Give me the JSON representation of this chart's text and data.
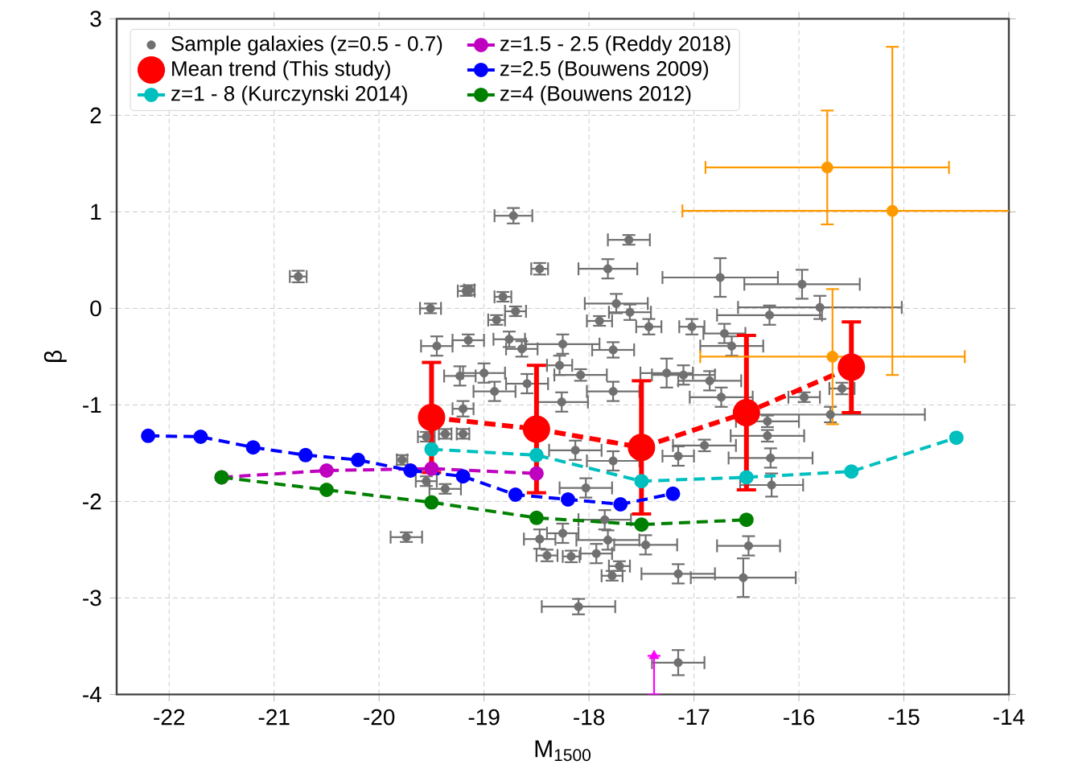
{
  "chart_data": {
    "type": "scatter",
    "xlabel": "M$_{1500}$",
    "ylabel": "β",
    "xlim": [
      -22.5,
      -14
    ],
    "ylim": [
      -4,
      3
    ],
    "xticks": [
      -22,
      -21,
      -20,
      -19,
      -18,
      -17,
      -16,
      -15,
      -14
    ],
    "yticks": [
      -4,
      -3,
      -2,
      -1,
      0,
      1,
      2,
      3
    ],
    "grid": true,
    "legend": "top",
    "marker": "circle",
    "series": [
      {
        "name": "Sample galaxies (z=0.5 - 0.7)",
        "color": "#707070",
        "x": [
          -20.77,
          -19.51,
          -19.45,
          -19.17,
          -19.23,
          -19.74,
          -18.72,
          -17.62,
          -18.47,
          -17.82,
          -16.75,
          -19.14,
          -18.82,
          -18.7,
          -18.88,
          -17.74,
          -17.61,
          -17.9,
          -17.43,
          -17.02,
          -16.71,
          -16.28,
          -19.15,
          -18.76,
          -18.25,
          -17.77,
          -18.64,
          -18.28,
          -17.26,
          -16.64,
          -15.97,
          -15.8,
          -15.59,
          -15.95,
          -15.7,
          -16.3,
          -16.3,
          -16.27,
          -16.26,
          -18.47,
          -18.25,
          -18.4,
          -18.17,
          -17.93,
          -17.82,
          -17.71,
          -17.78,
          -17.46,
          -17.15,
          -16.48,
          -16.53,
          -18.1,
          -17.15,
          -19.55,
          -19.37,
          -19.2,
          -19.55,
          -19.37,
          -19.78,
          -19.2,
          -18.9,
          -18.59,
          -18.08,
          -17.77,
          -17.1,
          -16.74,
          -16.85,
          -18.26,
          -19.0,
          -18.13,
          -17.77,
          -17.15,
          -16.9,
          -18.03,
          -17.85
        ],
        "values": [
          0.33,
          0.0,
          -0.39,
          0.18,
          -0.7,
          -2.37,
          0.96,
          0.71,
          0.41,
          0.41,
          0.32,
          0.19,
          0.12,
          -0.03,
          -0.12,
          0.05,
          -0.04,
          -0.13,
          -0.19,
          -0.19,
          -0.26,
          -0.07,
          -0.33,
          -0.32,
          -0.37,
          -0.43,
          -0.42,
          -0.59,
          -0.67,
          -0.39,
          0.25,
          0.01,
          -0.83,
          -0.92,
          -1.1,
          -1.17,
          -1.32,
          -1.55,
          -1.83,
          -2.39,
          -2.33,
          -2.56,
          -2.57,
          -2.54,
          -2.4,
          -2.67,
          -2.77,
          -2.45,
          -2.75,
          -2.46,
          -2.79,
          -3.09,
          -3.67,
          -1.33,
          -1.3,
          -1.3,
          -1.79,
          -1.87,
          -1.57,
          -1.04,
          -0.86,
          -0.78,
          -0.69,
          -0.86,
          -0.69,
          -0.92,
          -0.75,
          -0.97,
          -0.67,
          -1.47,
          -1.58,
          -1.53,
          -1.42,
          -1.86,
          -2.19
        ],
        "xerrors": [
          0.08,
          0.1,
          0.15,
          0.08,
          0.15,
          0.15,
          0.18,
          0.2,
          0.08,
          0.28,
          0.55,
          0.05,
          0.08,
          0.1,
          0.08,
          0.3,
          0.2,
          0.12,
          0.12,
          0.12,
          0.2,
          0.5,
          0.15,
          0.15,
          0.35,
          0.2,
          0.15,
          0.12,
          0.25,
          0.3,
          0.55,
          0.78,
          0.12,
          0.15,
          0.9,
          0.3,
          0.35,
          0.4,
          0.3,
          0.15,
          0.15,
          0.1,
          0.08,
          0.15,
          0.3,
          0.1,
          0.1,
          0.3,
          0.35,
          0.3,
          0.5,
          0.35,
          0.25,
          0.08,
          0.06,
          0.06,
          0.1,
          0.15,
          0.05,
          0.1,
          0.2,
          0.2,
          0.25,
          0.25,
          0.3,
          0.3,
          0.3,
          0.25,
          0.2,
          0.25,
          0.25,
          0.15,
          0.3,
          0.25,
          0.25
        ],
        "errors": [
          0.06,
          0.05,
          0.1,
          0.05,
          0.1,
          0.05,
          0.08,
          0.05,
          0.06,
          0.1,
          0.2,
          0.05,
          0.05,
          0.05,
          0.05,
          0.1,
          0.08,
          0.05,
          0.08,
          0.08,
          0.1,
          0.1,
          0.06,
          0.08,
          0.1,
          0.08,
          0.08,
          0.1,
          0.15,
          0.1,
          0.15,
          0.12,
          0.06,
          0.05,
          0.08,
          0.06,
          0.06,
          0.1,
          0.12,
          0.1,
          0.1,
          0.06,
          0.06,
          0.1,
          0.1,
          0.05,
          0.05,
          0.1,
          0.1,
          0.1,
          0.2,
          0.08,
          0.13,
          0.05,
          0.05,
          0.05,
          0.05,
          0.05,
          0.05,
          0.08,
          0.1,
          0.1,
          0.06,
          0.1,
          0.1,
          0.1,
          0.1,
          0.1,
          0.1,
          0.1,
          0.1,
          0.1,
          0.06,
          0.1,
          0.1
        ]
      },
      {
        "type": "line",
        "line_style": "dashed",
        "name": "z=1.5 - 2.5 (Reddy 2018)",
        "color": "#bf00bf",
        "x": [
          -21.5,
          -20.5,
          -19.5,
          -18.5
        ],
        "values": [
          -1.75,
          -1.68,
          -1.66,
          -1.71
        ]
      },
      {
        "type": "line",
        "line_style": "dashed",
        "name": "Mean trend (This study)",
        "color": "#ff0000",
        "x": [
          -19.5,
          -18.5,
          -17.5,
          -16.5,
          -15.5
        ],
        "values": [
          -1.13,
          -1.25,
          -1.44,
          -1.08,
          -0.61
        ],
        "errors": [
          0.57,
          0.66,
          0.69,
          0.8,
          0.47
        ]
      },
      {
        "type": "line",
        "line_style": "dashed",
        "name": "z=2.5 (Bouwens 2009)",
        "color": "#0000ff",
        "x": [
          -22.2,
          -21.7,
          -21.2,
          -20.7,
          -20.2,
          -19.7,
          -19.2,
          -18.7,
          -18.2,
          -17.7,
          -17.2
        ],
        "values": [
          -1.32,
          -1.33,
          -1.44,
          -1.52,
          -1.57,
          -1.68,
          -1.74,
          -1.93,
          -1.98,
          -2.03,
          -1.92
        ]
      },
      {
        "type": "line",
        "line_style": "dashed",
        "name": "z=1 - 8 (Kurczynski 2014)",
        "color": "#00bfbf",
        "x": [
          -19.5,
          -18.5,
          -17.5,
          -16.5,
          -15.5,
          -14.5
        ],
        "values": [
          -1.46,
          -1.52,
          -1.79,
          -1.75,
          -1.69,
          -1.34
        ]
      },
      {
        "type": "line",
        "line_style": "dashed",
        "name": "z=4 (Bouwens 2012)",
        "color": "#008000",
        "x": [
          -21.5,
          -20.5,
          -19.5,
          -18.5,
          -17.5,
          -16.5
        ],
        "values": [
          -1.75,
          -1.88,
          -2.01,
          -2.17,
          -2.24,
          -2.19
        ]
      },
      {
        "color": "#ff9900",
        "x": [
          -15.73,
          -15.11,
          -15.68
        ],
        "values": [
          1.46,
          1.01,
          -0.5
        ],
        "errors": [
          0.59,
          1.7,
          0.7
        ],
        "xerrors": [
          1.16,
          2.0,
          1.26
        ]
      },
      {
        "marker": "triangle",
        "color": "#ff00ff",
        "x": [
          -17.38
        ],
        "values": [
          -3.6
        ],
        "errors": [
          [
            -4,
            -3.6
          ]
        ]
      }
    ]
  }
}
